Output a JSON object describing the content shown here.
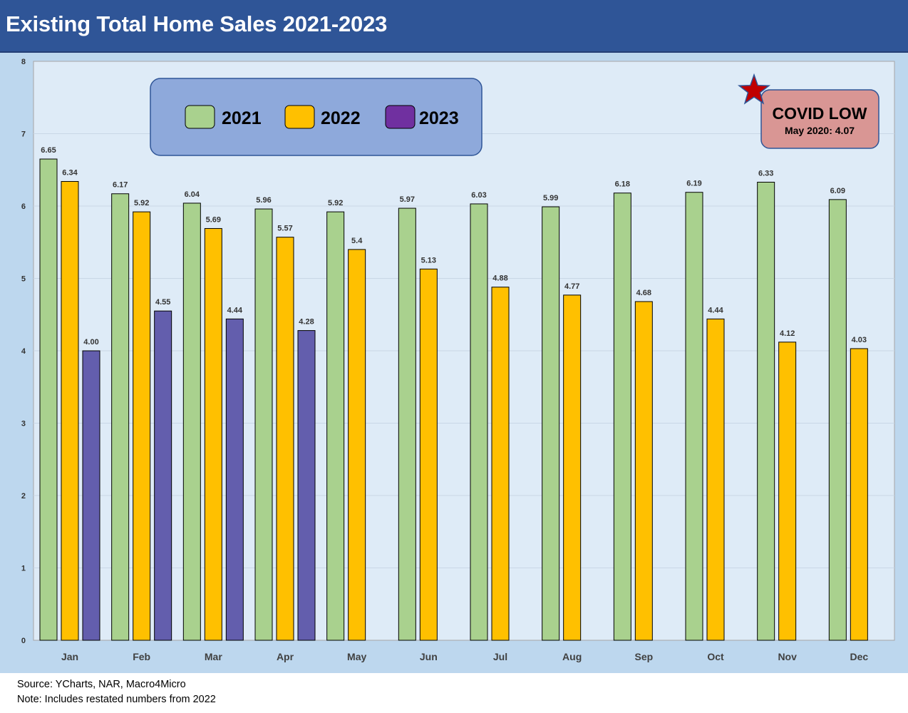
{
  "header": {
    "title": "Existing Total Home Sales 2021-2023"
  },
  "colors": {
    "header_bg": "#2f5597",
    "outer_bg": "#bdd7ee",
    "plot_bg": "#deebf7",
    "s2021": "#a9d18e",
    "s2022": "#ffc000",
    "s2023": "#635ead",
    "s2023_legend": "#7030a0",
    "legend_box": "#8ea9db",
    "covid_box": "#d99694",
    "star": "#c00000"
  },
  "legend": {
    "items": [
      {
        "label": "2021",
        "color": "#a9d18e"
      },
      {
        "label": "2022",
        "color": "#ffc000"
      },
      {
        "label": "2023",
        "color": "#7030a0"
      }
    ]
  },
  "annotation": {
    "title": "COVID LOW",
    "subtitle": "May 2020: 4.07",
    "icon": "star-icon"
  },
  "chart_data": {
    "type": "bar",
    "title": "Existing Total Home Sales 2021-2023",
    "xlabel": "",
    "ylabel": "",
    "ylim": [
      0,
      8
    ],
    "yticks": [
      0,
      1,
      2,
      3,
      4,
      5,
      6,
      7,
      8
    ],
    "grid": true,
    "legend_position": "top-left",
    "categories": [
      "Jan",
      "Feb",
      "Mar",
      "Apr",
      "May",
      "Jun",
      "Jul",
      "Aug",
      "Sep",
      "Oct",
      "Nov",
      "Dec"
    ],
    "series": [
      {
        "name": "2021",
        "values": [
          6.65,
          6.17,
          6.04,
          5.96,
          5.92,
          5.97,
          6.03,
          5.99,
          6.18,
          6.19,
          6.33,
          6.09
        ],
        "labels": [
          "6.65",
          "6.17",
          "6.04",
          "5.96",
          "5.92",
          "5.97",
          "6.03",
          "5.99",
          "6.18",
          "6.19",
          "6.33",
          "6.09"
        ]
      },
      {
        "name": "2022",
        "values": [
          6.34,
          5.92,
          5.69,
          5.57,
          5.4,
          5.13,
          4.88,
          4.77,
          4.68,
          4.44,
          4.12,
          4.03
        ],
        "labels": [
          "6.34",
          "5.92",
          "5.69",
          "5.57",
          "5.4",
          "5.13",
          "4.88",
          "4.77",
          "4.68",
          "4.44",
          "4.12",
          "4.03"
        ]
      },
      {
        "name": "2023",
        "values": [
          4.0,
          4.55,
          4.44,
          4.28,
          null,
          null,
          null,
          null,
          null,
          null,
          null,
          null
        ],
        "labels": [
          "4.00",
          "4.55",
          "4.44",
          "4.28",
          "",
          "",
          "",
          "",
          "",
          "",
          "",
          ""
        ]
      }
    ]
  },
  "footer": {
    "source": "Source: YCharts, NAR, Macro4Micro",
    "note": "Note: Includes restated numbers from 2022"
  }
}
